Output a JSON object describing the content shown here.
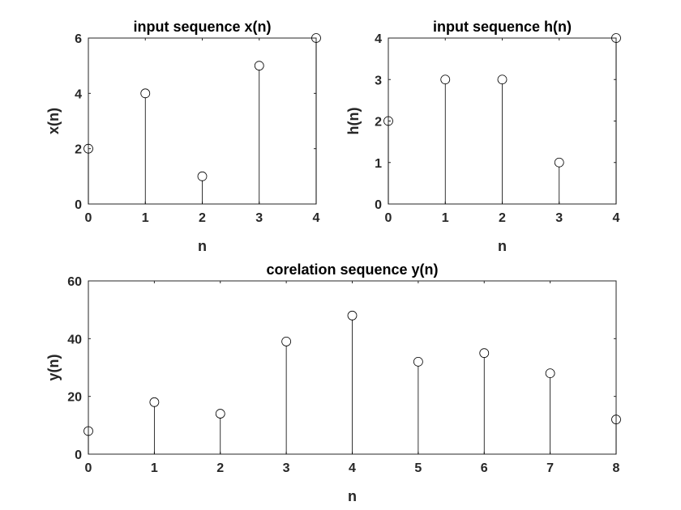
{
  "chart_data": [
    {
      "type": "stem",
      "title": "input sequence x(n)",
      "xlabel": "n",
      "ylabel": "x(n)",
      "x": [
        0,
        1,
        2,
        3,
        4
      ],
      "y": [
        2,
        4,
        1,
        5,
        6
      ],
      "xlim": [
        0,
        4
      ],
      "ylim": [
        0,
        6
      ],
      "xticks": [
        0,
        1,
        2,
        3,
        4
      ],
      "yticks": [
        0,
        2,
        4,
        6
      ],
      "grid": false,
      "marker": "open-circle"
    },
    {
      "type": "stem",
      "title": "input sequence h(n)",
      "xlabel": "n",
      "ylabel": "h(n)",
      "x": [
        0,
        1,
        2,
        3,
        4
      ],
      "y": [
        2,
        3,
        3,
        1,
        4
      ],
      "xlim": [
        0,
        4
      ],
      "ylim": [
        0,
        4
      ],
      "xticks": [
        0,
        1,
        2,
        3,
        4
      ],
      "yticks": [
        0,
        1,
        2,
        3,
        4
      ],
      "grid": false,
      "marker": "open-circle"
    },
    {
      "type": "stem",
      "title": "corelation sequence y(n)",
      "xlabel": "n",
      "ylabel": "y(n)",
      "x": [
        0,
        1,
        2,
        3,
        4,
        5,
        6,
        7,
        8
      ],
      "y": [
        8,
        18,
        14,
        39,
        48,
        32,
        35,
        28,
        12
      ],
      "xlim": [
        0,
        8
      ],
      "ylim": [
        0,
        60
      ],
      "xticks": [
        0,
        1,
        2,
        3,
        4,
        5,
        6,
        7,
        8
      ],
      "yticks": [
        0,
        20,
        40,
        60
      ],
      "grid": false,
      "marker": "open-circle"
    }
  ]
}
